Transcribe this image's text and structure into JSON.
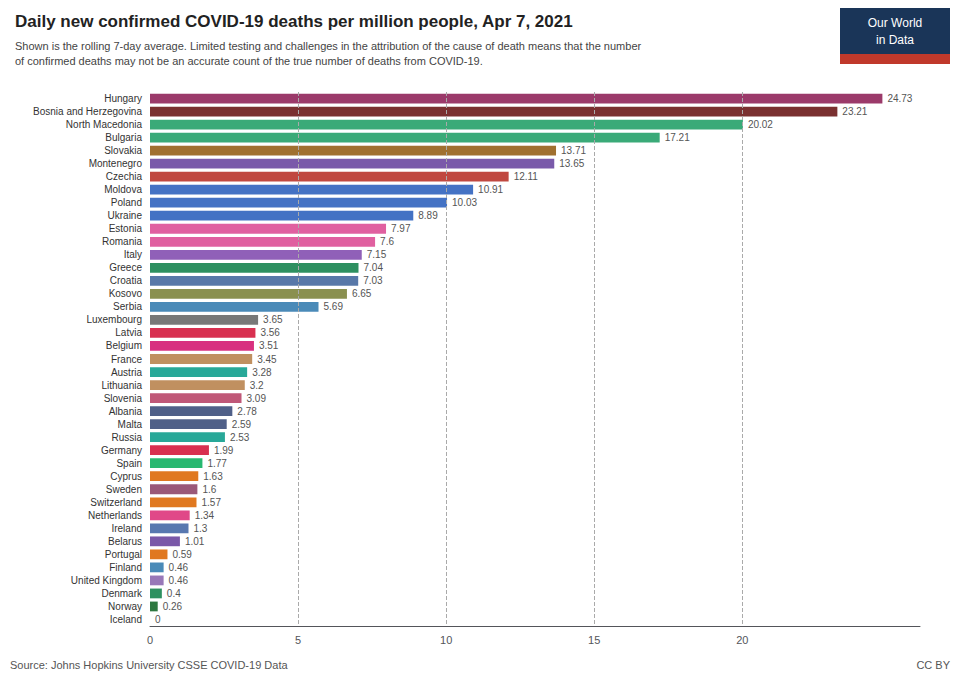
{
  "chart_data": {
    "type": "bar",
    "orientation": "horizontal",
    "title": "Daily new confirmed COVID-19 deaths per million people, Apr 7, 2021",
    "subtitle": "Shown is the rolling 7-day average. Limited testing and challenges in the attribution of the cause of death means that the number\nof confirmed deaths may not be an accurate count of the true number of deaths from COVID-19.",
    "annotations": [
      "Source: Johns Hopkins University CSSE COVID-19 Data",
      "CC BY",
      "Our World",
      "in Data"
    ],
    "categories": [
      "Hungary",
      "Bosnia and Herzegovina",
      "North Macedonia",
      "Bulgaria",
      "Slovakia",
      "Montenegro",
      "Czechia",
      "Moldova",
      "Poland",
      "Ukraine",
      "Estonia",
      "Romania",
      "Italy",
      "Greece",
      "Croatia",
      "Kosovo",
      "Serbia",
      "Luxembourg",
      "Latvia",
      "Belgium",
      "France",
      "Austria",
      "Lithuania",
      "Slovenia",
      "Albania",
      "Malta",
      "Russia",
      "Germany",
      "Spain",
      "Cyprus",
      "Sweden",
      "Switzerland",
      "Netherlands",
      "Ireland",
      "Belarus",
      "Portugal",
      "Finland",
      "United Kingdom",
      "Denmark",
      "Norway",
      "Iceland"
    ],
    "values": [
      24.73,
      23.21,
      20.02,
      17.21,
      13.71,
      13.65,
      12.11,
      10.91,
      10.03,
      8.89,
      7.97,
      7.6,
      7.15,
      7.04,
      7.03,
      6.65,
      5.69,
      3.65,
      3.56,
      3.51,
      3.45,
      3.28,
      3.2,
      3.09,
      2.78,
      2.59,
      2.53,
      1.99,
      1.77,
      1.63,
      1.6,
      1.57,
      1.34,
      1.3,
      1.01,
      0.59,
      0.46,
      0.46,
      0.4,
      0.26,
      0
    ],
    "colors": [
      "#9b3a6a",
      "#7a3030",
      "#3aaa78",
      "#3aaa78",
      "#a07030",
      "#7a5aaa",
      "#c04840",
      "#4472c4",
      "#4472c4",
      "#4472c4",
      "#e060a0",
      "#e060a0",
      "#9060b8",
      "#2e9060",
      "#5878a8",
      "#8a9050",
      "#4a8ab8",
      "#787878",
      "#d83050",
      "#d83080",
      "#c09060",
      "#28a898",
      "#c09060",
      "#c05878",
      "#506088",
      "#506088",
      "#28a898",
      "#d83050",
      "#28b870",
      "#e07820",
      "#9a5878",
      "#e07820",
      "#e04888",
      "#5878b0",
      "#7a58a8",
      "#e07820",
      "#4a8ab8",
      "#9878b8",
      "#2e9060",
      "#2e7840",
      "#2e7840"
    ],
    "xlim": [
      0,
      26
    ],
    "xticks": [
      0,
      5,
      10,
      15,
      20
    ],
    "grid": true,
    "data_labels": true
  }
}
